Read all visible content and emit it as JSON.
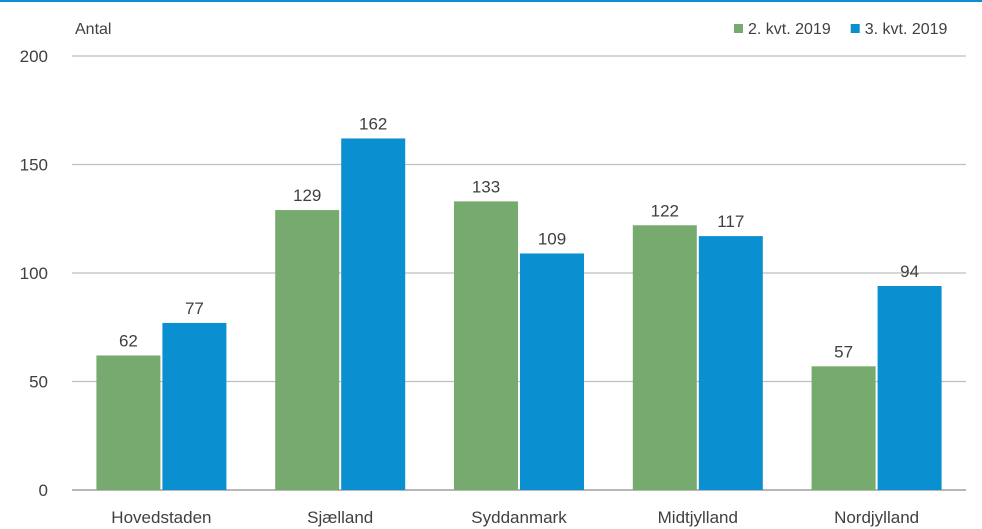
{
  "chart_data": {
    "type": "bar",
    "ylabel": "Antal",
    "categories": [
      "Hovedstaden",
      "Sjælland",
      "Syddanmark",
      "Midtjylland",
      "Nordjylland"
    ],
    "series": [
      {
        "name": "2. kvt. 2019",
        "values": [
          62,
          129,
          133,
          122,
          57
        ],
        "color": "#77aa6e"
      },
      {
        "name": "3. kvt. 2019",
        "values": [
          77,
          162,
          109,
          117,
          94
        ],
        "color": "#0a8fd0"
      }
    ],
    "ylim": [
      0,
      200
    ],
    "yticks": [
      0,
      50,
      100,
      150,
      200
    ],
    "grid": true,
    "legend_position": "top-right",
    "data_labels": true
  }
}
